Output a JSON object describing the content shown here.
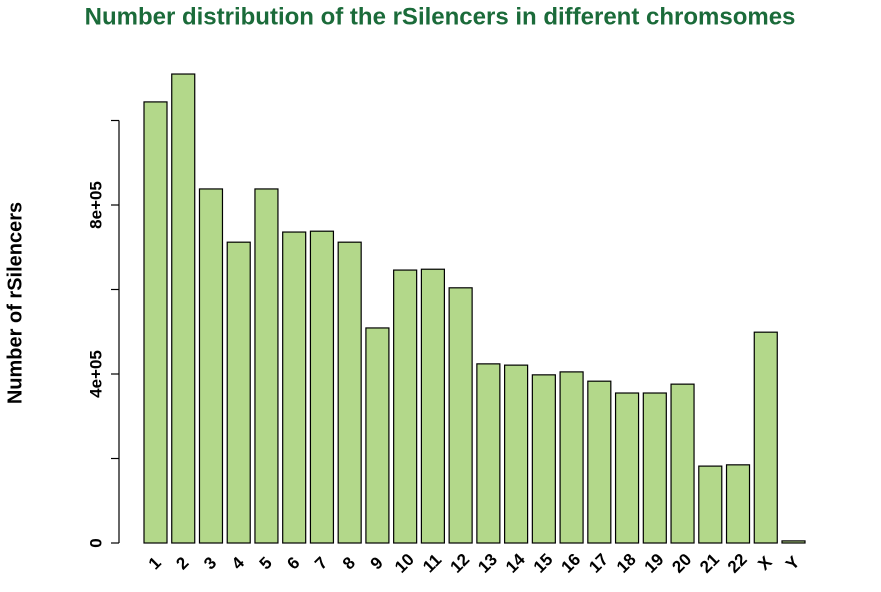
{
  "chart_data": {
    "type": "bar",
    "title": "Number distribution of the rSilencers in different chromsomes",
    "y_label": "Number of rSilencers",
    "categories": [
      "1",
      "2",
      "3",
      "4",
      "5",
      "6",
      "7",
      "8",
      "9",
      "10",
      "11",
      "12",
      "13",
      "14",
      "15",
      "16",
      "17",
      "18",
      "19",
      "20",
      "21",
      "22",
      "X",
      "Y"
    ],
    "values": [
      1044000,
      1110000,
      838000,
      712000,
      838000,
      736000,
      738000,
      712000,
      509000,
      646000,
      648000,
      604000,
      424000,
      421000,
      398000,
      405000,
      383000,
      355000,
      355000,
      376000,
      182000,
      185000,
      499000,
      5000
    ],
    "color": "#b3d88a",
    "ylim": [
      0,
      1120000
    ],
    "yticks": [
      0,
      {
        "value": 400000,
        "label": "4e+05"
      },
      {
        "value": 800000,
        "label": "8e+05"
      }
    ],
    "yminor_ticks": [
      200000,
      600000,
      1000000
    ]
  }
}
